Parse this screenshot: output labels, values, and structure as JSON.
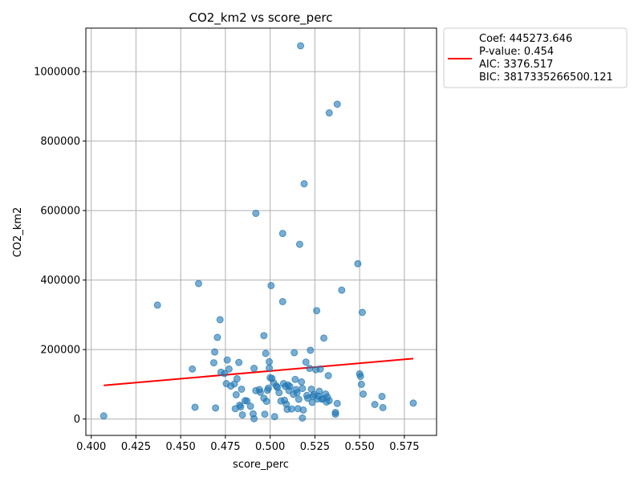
{
  "chart_data": {
    "type": "scatter",
    "title": "CO2_km2 vs score_perc",
    "xlabel": "score_perc",
    "ylabel": "CO2_km2",
    "xlim": [
      0.397,
      0.593
    ],
    "ylim": [
      -47000,
      1125000
    ],
    "xticks": [
      "0.400",
      "0.425",
      "0.450",
      "0.475",
      "0.500",
      "0.525",
      "0.550",
      "0.575"
    ],
    "yticks": [
      "0",
      "200000",
      "400000",
      "600000",
      "800000",
      "1000000"
    ],
    "grid": true,
    "legend": {
      "placement": "outside-top-right",
      "lines": [
        "Coef: 445273.646",
        "P-value: 0.454",
        "AIC: 3376.517",
        "BIC: 3817335266500.121"
      ]
    },
    "colors": {
      "points": "#1f77b4",
      "fit_line": "#ff0000"
    },
    "fit_line": {
      "x": [
        0.407,
        0.58
      ],
      "y": [
        97000,
        174000
      ]
    },
    "points": [
      [
        0.407,
        9000
      ],
      [
        0.437,
        328000
      ],
      [
        0.4565,
        144000
      ],
      [
        0.458,
        34000
      ],
      [
        0.46,
        390000
      ],
      [
        0.4685,
        162000
      ],
      [
        0.469,
        193000
      ],
      [
        0.4695,
        32000
      ],
      [
        0.4705,
        235000
      ],
      [
        0.472,
        286000
      ],
      [
        0.4725,
        135000
      ],
      [
        0.4745,
        131000
      ],
      [
        0.4755,
        102000
      ],
      [
        0.476,
        170000
      ],
      [
        0.477,
        144000
      ],
      [
        0.478,
        95000
      ],
      [
        0.48,
        101000
      ],
      [
        0.4805,
        30000
      ],
      [
        0.481,
        70000
      ],
      [
        0.4815,
        116000
      ],
      [
        0.4825,
        163000
      ],
      [
        0.483,
        40000
      ],
      [
        0.4835,
        35000
      ],
      [
        0.484,
        86000
      ],
      [
        0.4845,
        12000
      ],
      [
        0.486,
        53000
      ],
      [
        0.487,
        52000
      ],
      [
        0.489,
        37000
      ],
      [
        0.4905,
        15000
      ],
      [
        0.491,
        1000
      ],
      [
        0.491,
        146000
      ],
      [
        0.492,
        82000
      ],
      [
        0.492,
        592000
      ],
      [
        0.494,
        85000
      ],
      [
        0.4945,
        77000
      ],
      [
        0.4965,
        60000
      ],
      [
        0.4965,
        240000
      ],
      [
        0.497,
        14000
      ],
      [
        0.4975,
        189000
      ],
      [
        0.498,
        51000
      ],
      [
        0.4985,
        83000
      ],
      [
        0.499,
        89000
      ],
      [
        0.4995,
        165000
      ],
      [
        0.4995,
        147000
      ],
      [
        0.5,
        119000
      ],
      [
        0.5005,
        384000
      ],
      [
        0.501,
        117000
      ],
      [
        0.502,
        104000
      ],
      [
        0.5025,
        7000
      ],
      [
        0.5035,
        95000
      ],
      [
        0.504,
        91000
      ],
      [
        0.505,
        76000
      ],
      [
        0.506,
        52000
      ],
      [
        0.507,
        338000
      ],
      [
        0.507,
        534000
      ],
      [
        0.5075,
        102000
      ],
      [
        0.508,
        54000
      ],
      [
        0.5085,
        94000
      ],
      [
        0.509,
        43000
      ],
      [
        0.5095,
        28000
      ],
      [
        0.51,
        98000
      ],
      [
        0.5105,
        82000
      ],
      [
        0.511,
        94000
      ],
      [
        0.512,
        29000
      ],
      [
        0.513,
        71000
      ],
      [
        0.5135,
        191000
      ],
      [
        0.514,
        114000
      ],
      [
        0.5145,
        85000
      ],
      [
        0.515,
        76000
      ],
      [
        0.5155,
        30000
      ],
      [
        0.516,
        57000
      ],
      [
        0.5165,
        503000
      ],
      [
        0.517,
        1074000
      ],
      [
        0.5175,
        107000
      ],
      [
        0.518,
        3000
      ],
      [
        0.518,
        88000
      ],
      [
        0.5185,
        26000
      ],
      [
        0.519,
        677000
      ],
      [
        0.52,
        164000
      ],
      [
        0.5205,
        68000
      ],
      [
        0.521,
        60000
      ],
      [
        0.522,
        146000
      ],
      [
        0.5225,
        198000
      ],
      [
        0.523,
        86000
      ],
      [
        0.5235,
        48000
      ],
      [
        0.524,
        66000
      ],
      [
        0.5245,
        71000
      ],
      [
        0.5255,
        142000
      ],
      [
        0.526,
        312000
      ],
      [
        0.5265,
        58000
      ],
      [
        0.527,
        66000
      ],
      [
        0.5275,
        80000
      ],
      [
        0.528,
        144000
      ],
      [
        0.529,
        57000
      ],
      [
        0.5295,
        59000
      ],
      [
        0.53,
        233000
      ],
      [
        0.531,
        72000
      ],
      [
        0.5315,
        49000
      ],
      [
        0.532,
        63000
      ],
      [
        0.5325,
        125000
      ],
      [
        0.533,
        53000
      ],
      [
        0.533,
        881000
      ],
      [
        0.5365,
        14000
      ],
      [
        0.5365,
        19000
      ],
      [
        0.5375,
        45000
      ],
      [
        0.5375,
        906000
      ],
      [
        0.54,
        371000
      ],
      [
        0.549,
        447000
      ],
      [
        0.55,
        130000
      ],
      [
        0.5505,
        123000
      ],
      [
        0.551,
        100000
      ],
      [
        0.5515,
        307000
      ],
      [
        0.552,
        72000
      ],
      [
        0.5585,
        42000
      ],
      [
        0.5625,
        65000
      ],
      [
        0.563,
        33000
      ],
      [
        0.58,
        46000
      ]
    ]
  }
}
